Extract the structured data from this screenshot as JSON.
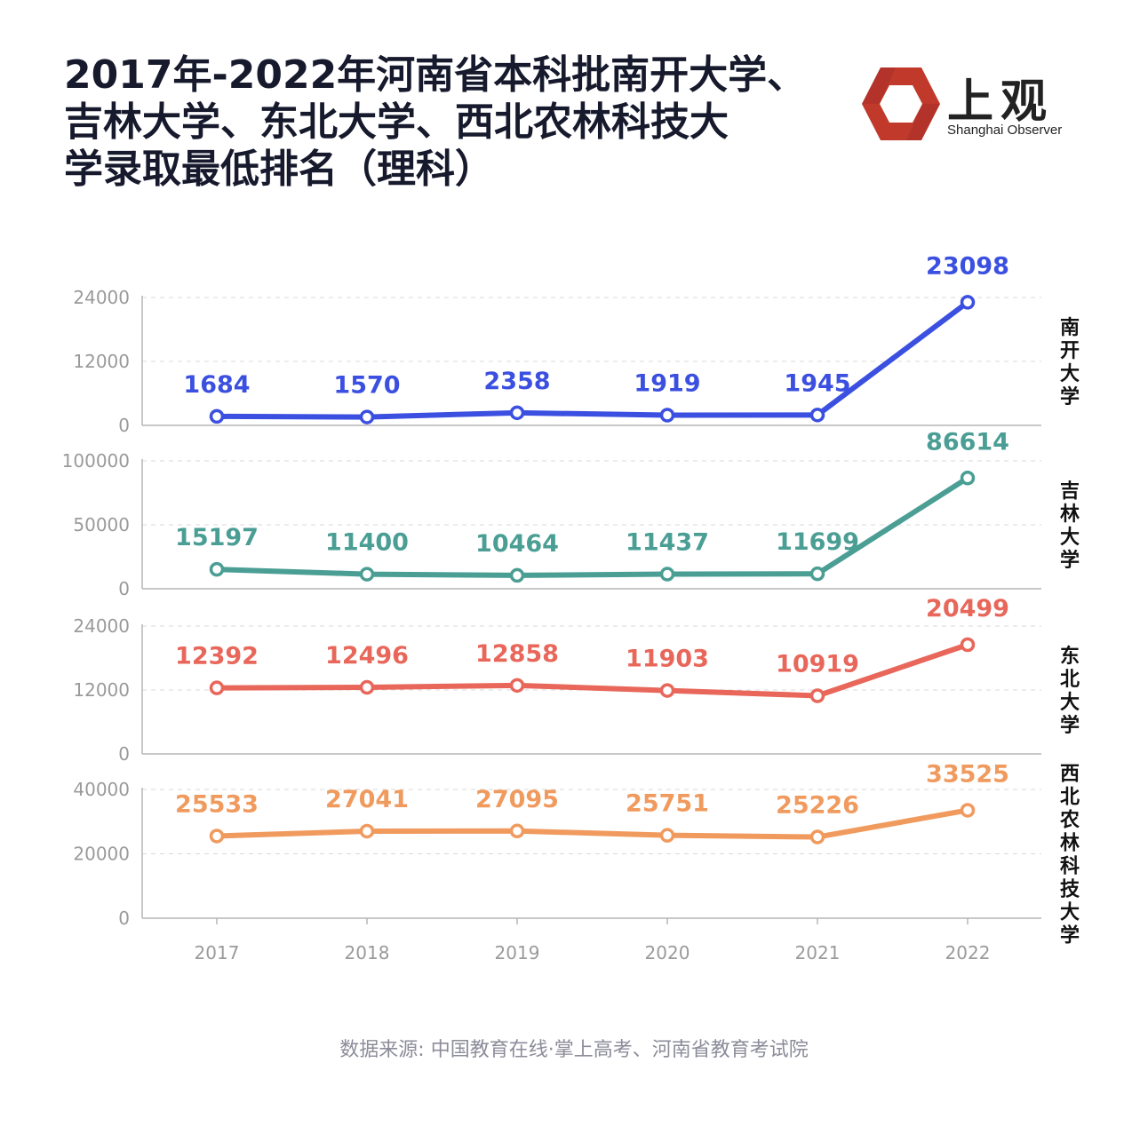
{
  "title_lines": [
    "2017年-2022年河南省本科批南开大学、",
    "吉林大学、东北大学、西北农林科技大",
    "学录取最低排名（理科）"
  ],
  "logo": {
    "cn": "上观",
    "en": "Shanghai Observer",
    "brand_color": "#c0392b"
  },
  "source": "数据来源: 中国教育在线·掌上高考、河南省教育考试院",
  "chart_data": {
    "type": "line",
    "title": "2017年-2022年河南省本科批南开大学、吉林大学、东北大学、西北农林科技大学录取最低排名（理科）",
    "categories": [
      "2017",
      "2018",
      "2019",
      "2020",
      "2021",
      "2022"
    ],
    "grid": true,
    "panels": [
      {
        "name": "南开大学",
        "color": "#3b4fe0",
        "ylim": [
          0,
          24000
        ],
        "yticks": [
          0,
          12000,
          24000
        ],
        "values": [
          1684,
          1570,
          2358,
          1919,
          1945,
          23098
        ]
      },
      {
        "name": "吉林大学",
        "color": "#4a9e94",
        "ylim": [
          0,
          100000
        ],
        "yticks": [
          0,
          50000,
          100000
        ],
        "values": [
          15197,
          11400,
          10464,
          11437,
          11699,
          86614
        ]
      },
      {
        "name": "东北大学",
        "color": "#e8675a",
        "ylim": [
          0,
          24000
        ],
        "yticks": [
          0,
          12000,
          24000
        ],
        "values": [
          12392,
          12496,
          12858,
          11903,
          10919,
          20499
        ]
      },
      {
        "name": "西北农林科技大学",
        "color": "#f09a5e",
        "ylim": [
          0,
          40000
        ],
        "yticks": [
          0,
          20000,
          40000
        ],
        "values": [
          25533,
          27041,
          27095,
          25751,
          25226,
          33525
        ]
      }
    ]
  }
}
